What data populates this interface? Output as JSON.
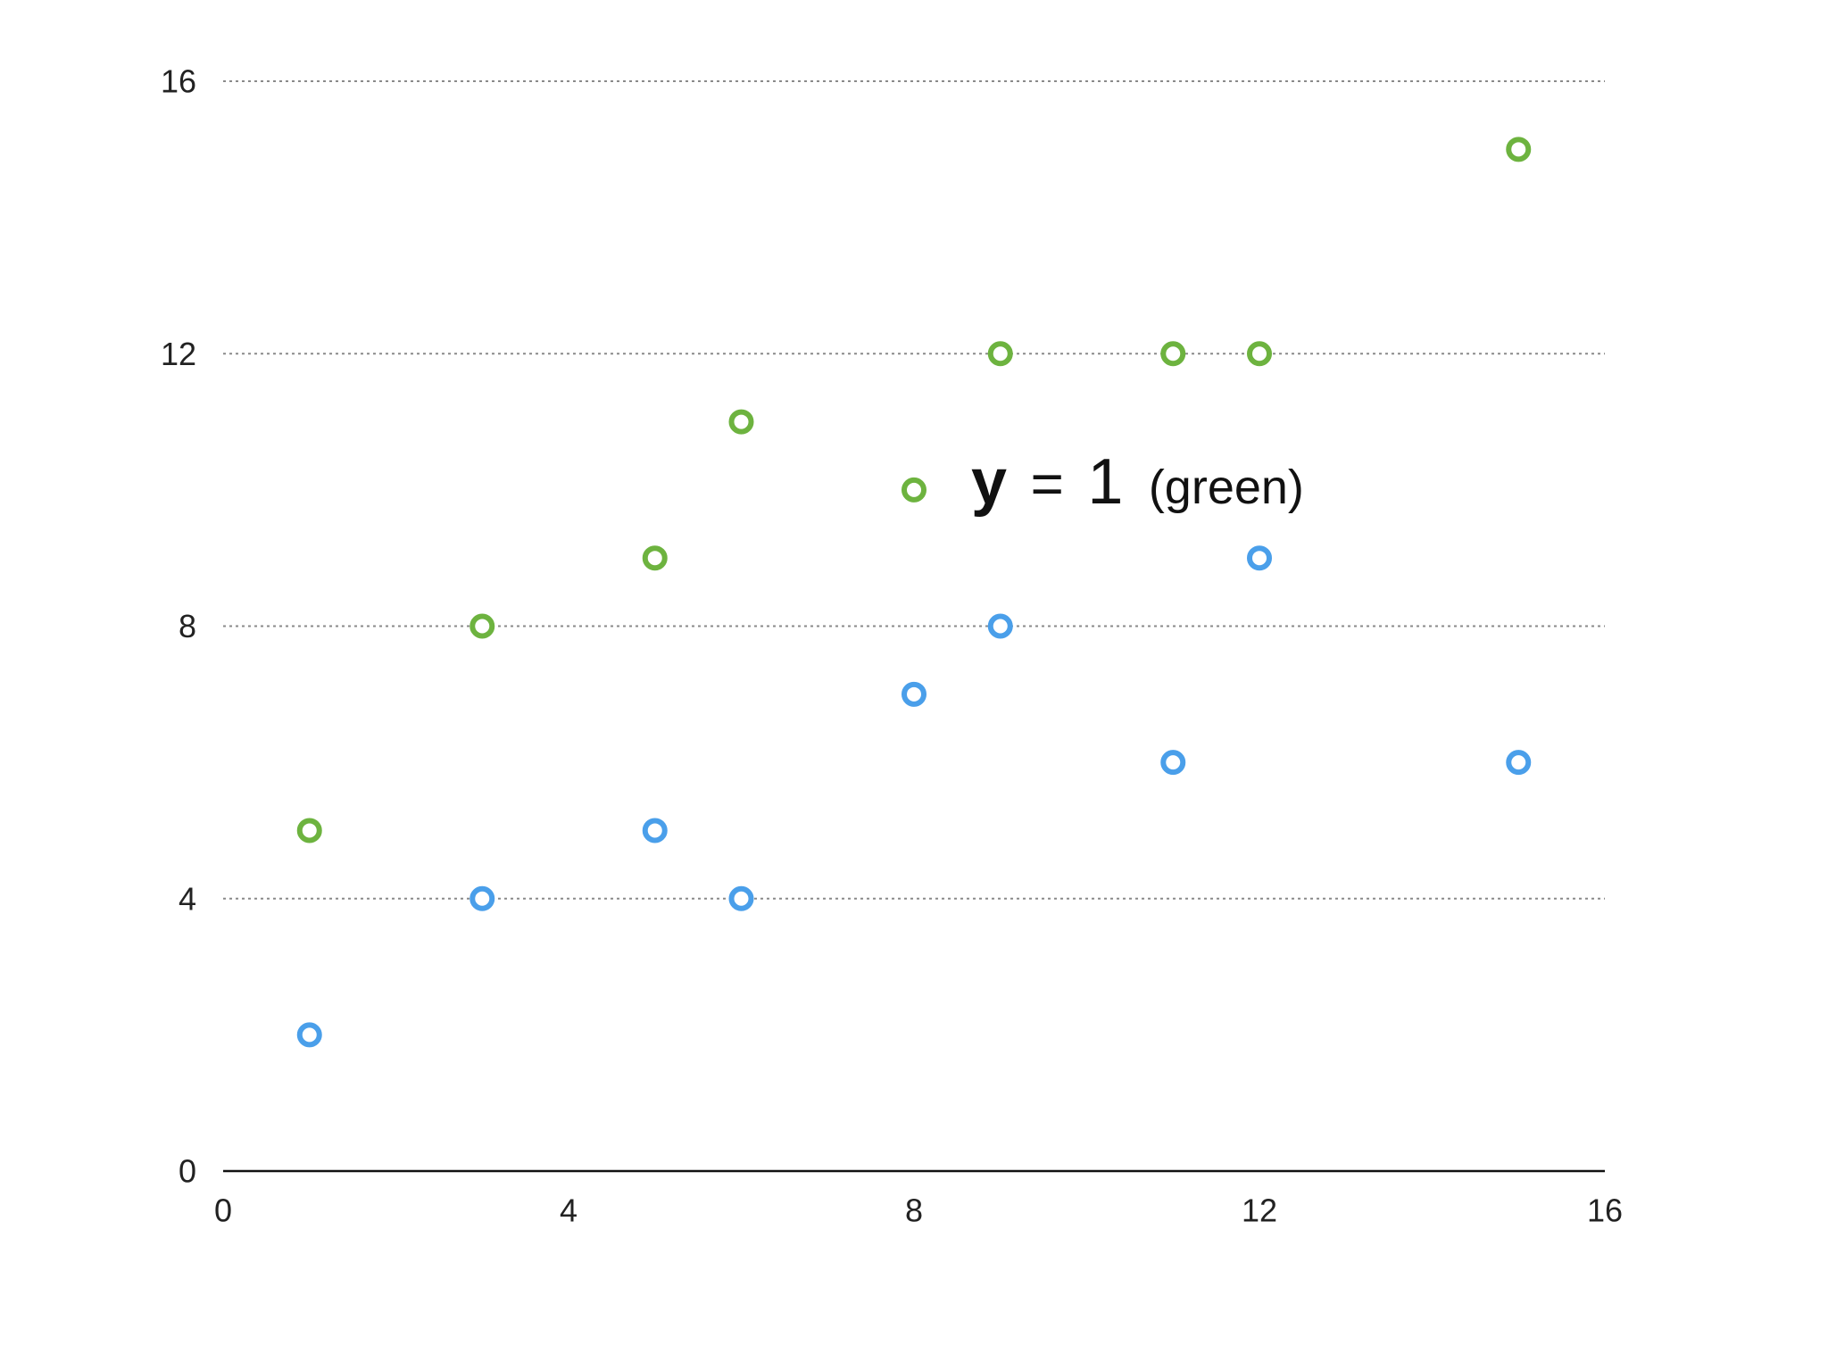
{
  "chart_data": {
    "type": "scatter",
    "xlim": [
      0,
      16
    ],
    "ylim": [
      0,
      16
    ],
    "x_ticks": [
      "0",
      "4",
      "8",
      "12",
      "16"
    ],
    "y_ticks": [
      "0",
      "4",
      "8",
      "12",
      "16"
    ],
    "grid": "horizontal dotted lines at y ticks",
    "series": [
      {
        "color": "#6db33f",
        "points": [
          {
            "x": 1,
            "y": 5
          },
          {
            "x": 3,
            "y": 8
          },
          {
            "x": 5,
            "y": 9
          },
          {
            "x": 6,
            "y": 11
          },
          {
            "x": 8,
            "y": 10
          },
          {
            "x": 9,
            "y": 12
          },
          {
            "x": 11,
            "y": 12
          },
          {
            "x": 12,
            "y": 12
          },
          {
            "x": 15,
            "y": 15
          }
        ]
      },
      {
        "color": "#4a9fea",
        "points": [
          {
            "x": 1,
            "y": 2
          },
          {
            "x": 3,
            "y": 4
          },
          {
            "x": 5,
            "y": 5
          },
          {
            "x": 6,
            "y": 4
          },
          {
            "x": 8,
            "y": 7
          },
          {
            "x": 9,
            "y": 8
          },
          {
            "x": 11,
            "y": 6
          },
          {
            "x": 12,
            "y": 9
          },
          {
            "x": 15,
            "y": 6
          }
        ]
      }
    ],
    "annotation": {
      "y": "y",
      "eq": "=",
      "one": "1",
      "paren": "(green)"
    }
  }
}
